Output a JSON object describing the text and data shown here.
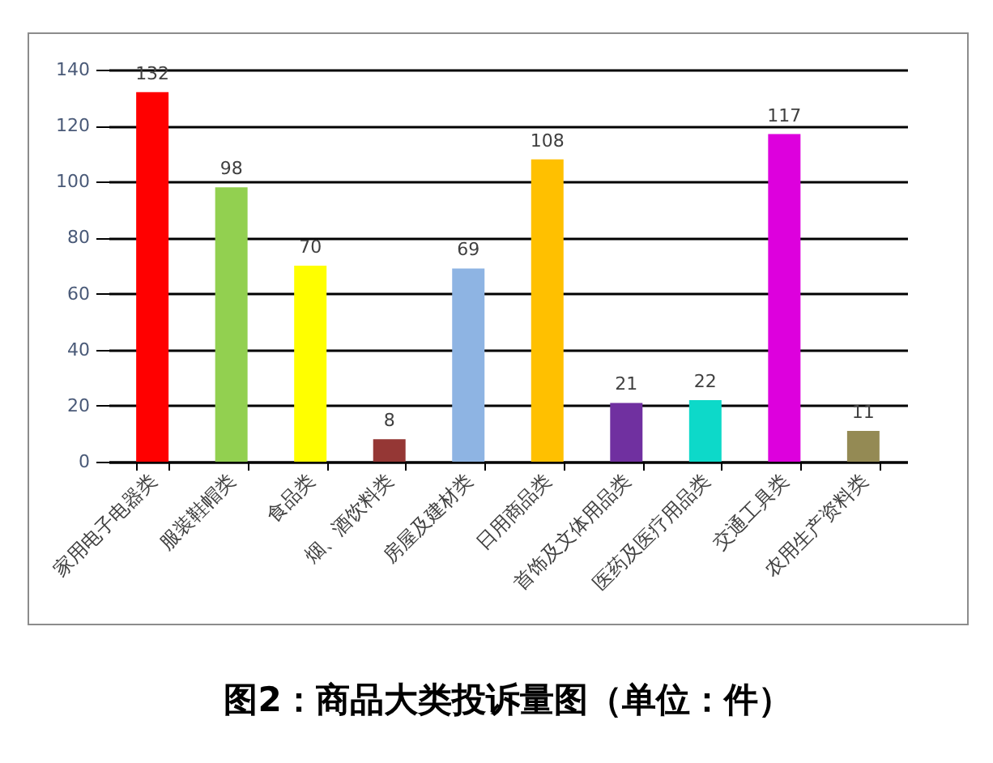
{
  "chart_data": {
    "type": "bar",
    "title": "图2：商品大类投诉量图（单位：件）",
    "categories": [
      "家用电子电器类",
      "服装鞋帽类",
      "食品类",
      "烟、酒饮料类",
      "房屋及建材类",
      "日用商品类",
      "首饰及文体用品类",
      "医药及医疗用品类",
      "交通工具类",
      "农用生产资料类"
    ],
    "values": [
      132,
      98,
      70,
      8,
      69,
      108,
      21,
      22,
      117,
      11
    ],
    "colors": [
      "#ff0000",
      "#92d050",
      "#ffff00",
      "#953735",
      "#8eb4e3",
      "#ffc000",
      "#7030a0",
      "#0dd9c9",
      "#dd00dd",
      "#948a54"
    ],
    "ylim": [
      0,
      140
    ],
    "yticks": [
      0,
      20,
      40,
      60,
      80,
      100,
      120,
      140
    ],
    "grid": "y",
    "data_labels": true,
    "legend": false
  }
}
